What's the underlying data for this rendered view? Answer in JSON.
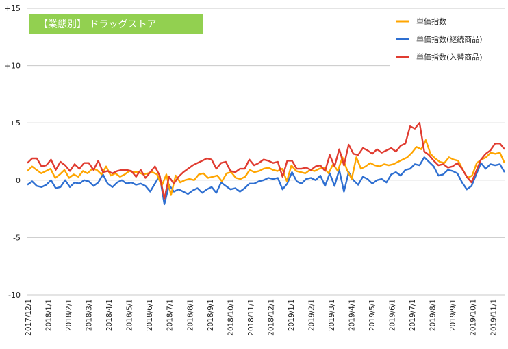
{
  "chart_data": {
    "type": "line",
    "title": "【業態別】 ドラッグストア",
    "title_bg_color": "#92d050",
    "ylim": [
      -10,
      15
    ],
    "yticks": [
      15,
      10,
      5,
      0,
      -5,
      -10
    ],
    "ytick_labels": [
      "+15",
      "+10",
      "+5",
      "0",
      "-5",
      "-10"
    ],
    "x_tick_labels": [
      "2017/12/1",
      "2018/1/1",
      "2018/2/1",
      "2018/3/1",
      "2018/4/1",
      "2018/5/1",
      "2018/6/1",
      "2018/7/1",
      "2018/8/1",
      "2018/9/1",
      "2018/10/1",
      "2018/11/1",
      "2018/12/1",
      "2019/1/1",
      "2019/2/1",
      "2019/3/1",
      "2019/4/1",
      "2019/5/1",
      "2019/6/1",
      "2019/7/1",
      "2019/8/1",
      "2019/9/1",
      "2019/10/1",
      "2019/11/1"
    ],
    "grid": true,
    "legend_position": "top-right",
    "series": [
      {
        "name": "単価指数",
        "color": "#ffa500",
        "values": [
          0.8,
          1.2,
          0.9,
          0.6,
          0.8,
          1.0,
          0.2,
          0.5,
          0.9,
          0.2,
          0.5,
          0.3,
          0.8,
          0.6,
          1.0,
          0.9,
          0.5,
          1.2,
          0.4,
          0.6,
          0.3,
          0.5,
          0.8,
          0.7,
          0.7,
          0.5,
          0.6,
          0.7,
          0.5,
          -0.5,
          0.5,
          -1.3,
          0.4,
          -0.2,
          0.0,
          0.1,
          0.0,
          0.5,
          0.6,
          0.2,
          0.3,
          0.4,
          -0.1,
          0.6,
          0.7,
          0.2,
          0.1,
          0.3,
          0.9,
          0.7,
          0.8,
          1.0,
          1.1,
          0.9,
          0.8,
          1.0,
          -0.1,
          1.3,
          0.8,
          0.7,
          0.6,
          0.9,
          0.8,
          1.0,
          1.1,
          0.6,
          1.4,
          0.8,
          2.0,
          0.9,
          0.1,
          2.0,
          1.0,
          1.2,
          1.5,
          1.3,
          1.2,
          1.4,
          1.3,
          1.4,
          1.6,
          1.8,
          2.0,
          2.4,
          2.9,
          2.7,
          3.5,
          2.3,
          1.9,
          1.6,
          1.5,
          2.0,
          1.8,
          1.7,
          0.9,
          0.2,
          0.4,
          1.5,
          1.8,
          2.0,
          2.4,
          2.3,
          2.4,
          1.5
        ]
      },
      {
        "name": "単価指数(継続商品)",
        "color": "#2e6fd1",
        "values": [
          -0.4,
          -0.1,
          -0.5,
          -0.6,
          -0.4,
          0.0,
          -0.7,
          -0.6,
          0.0,
          -0.6,
          -0.2,
          -0.3,
          0.0,
          -0.1,
          -0.5,
          -0.2,
          0.5,
          -0.3,
          -0.6,
          -0.2,
          0.0,
          -0.3,
          -0.2,
          -0.4,
          -0.3,
          -0.5,
          -1.0,
          -0.3,
          0.4,
          -2.1,
          -0.4,
          -1.0,
          -0.8,
          -1.0,
          -1.2,
          -0.9,
          -0.7,
          -1.1,
          -0.8,
          -0.6,
          -1.1,
          -0.2,
          -0.5,
          -0.8,
          -0.7,
          -1.0,
          -0.7,
          -0.3,
          -0.3,
          -0.1,
          0.0,
          0.2,
          0.1,
          0.2,
          -0.8,
          -0.3,
          0.7,
          -0.1,
          -0.3,
          0.1,
          0.2,
          0.0,
          0.4,
          -0.5,
          0.6,
          -0.5,
          0.9,
          -1.0,
          0.7,
          0.0,
          -0.4,
          0.3,
          0.1,
          -0.3,
          0.0,
          0.1,
          -0.2,
          0.5,
          0.7,
          0.4,
          0.9,
          1.0,
          1.4,
          1.3,
          2.0,
          1.6,
          1.2,
          0.4,
          0.5,
          0.9,
          0.8,
          0.6,
          -0.2,
          -0.8,
          -0.5,
          0.5,
          1.5,
          1.0,
          1.4,
          1.3,
          1.4,
          0.7
        ]
      },
      {
        "name": "単価指数(入替商品)",
        "color": "#e03c31",
        "values": [
          1.5,
          1.9,
          1.9,
          1.2,
          1.3,
          1.8,
          0.9,
          1.6,
          1.3,
          0.8,
          1.4,
          1.0,
          1.5,
          1.5,
          0.9,
          1.7,
          0.7,
          0.8,
          0.6,
          0.8,
          0.9,
          0.9,
          0.8,
          0.3,
          0.9,
          0.2,
          0.7,
          1.2,
          0.4,
          -1.6,
          0.3,
          -0.3,
          0.3,
          0.7,
          1.0,
          1.3,
          1.5,
          1.7,
          1.9,
          1.8,
          1.0,
          1.5,
          1.6,
          0.8,
          0.7,
          1.0,
          1.0,
          1.8,
          1.3,
          1.5,
          1.8,
          1.7,
          1.5,
          1.6,
          0.3,
          1.7,
          1.7,
          1.0,
          1.0,
          1.1,
          0.9,
          1.2,
          1.3,
          0.8,
          2.2,
          1.2,
          2.7,
          1.3,
          3.1,
          2.3,
          2.2,
          2.8,
          2.6,
          2.3,
          2.7,
          2.4,
          2.6,
          2.8,
          2.5,
          3.0,
          3.2,
          4.7,
          4.5,
          5.0,
          2.5,
          2.2,
          1.7,
          1.3,
          1.4,
          1.1,
          1.2,
          1.5,
          1.0,
          0.3,
          -0.2,
          0.8,
          1.8,
          2.3,
          2.6,
          3.2,
          3.2,
          2.7
        ]
      }
    ]
  }
}
